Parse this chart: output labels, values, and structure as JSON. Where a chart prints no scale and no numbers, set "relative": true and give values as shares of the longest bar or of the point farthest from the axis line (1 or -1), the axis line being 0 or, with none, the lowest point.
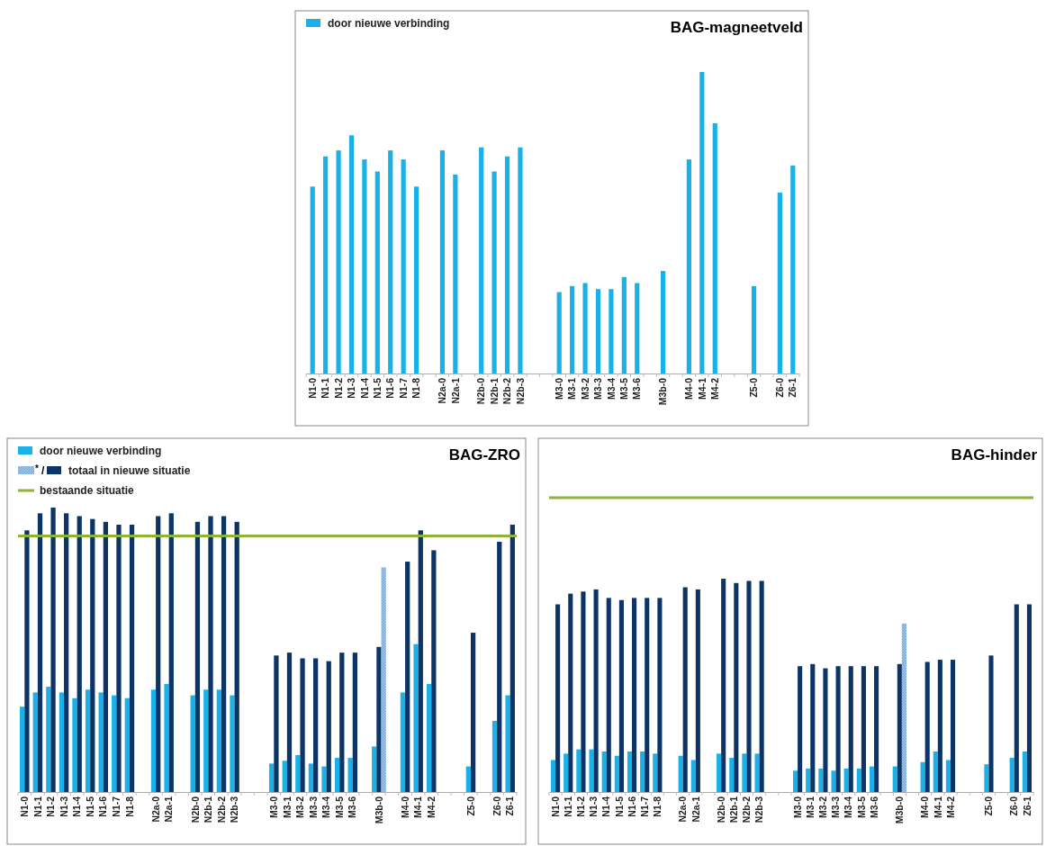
{
  "chart_data": [
    {
      "type": "bar",
      "title": "BAG-magneetveld",
      "relative": true,
      "legend": "top left",
      "categories": [
        "N1-0",
        "N1-1",
        "N1-2",
        "N1-3",
        "N1-4",
        "N1-5",
        "N1-6",
        "N1-7",
        "N1-8",
        null,
        "N2a-0",
        "N2a-1",
        null,
        "N2b-0",
        "N2b-1",
        "N2b-2",
        "N2b-3",
        null,
        null,
        "M3-0",
        "M3-1",
        "M3-2",
        "M3-3",
        "M3-4",
        "M3-5",
        "M3-6",
        null,
        "M3b-0",
        null,
        "M4-0",
        "M4-1",
        "M4-2",
        null,
        null,
        "Z5-0",
        null,
        "Z6-0",
        "Z6-1"
      ],
      "series": [
        {
          "name": "door nieuwe verbinding",
          "color": "#1ab0e8",
          "values": [
            0.62,
            0.72,
            0.74,
            0.79,
            0.71,
            0.67,
            0.74,
            0.71,
            0.62,
            null,
            0.74,
            0.66,
            null,
            0.75,
            0.67,
            0.72,
            0.75,
            null,
            null,
            0.27,
            0.29,
            0.3,
            0.28,
            0.28,
            0.32,
            0.3,
            null,
            0.34,
            null,
            0.71,
            1,
            0.83,
            null,
            null,
            0.29,
            null,
            0.6,
            0.69
          ]
        }
      ]
    },
    {
      "type": "bar",
      "title": "BAG-ZRO",
      "relative": true,
      "legend": "top left",
      "annotations": [
        "*",
        "/"
      ],
      "categories": [
        "N1-0",
        "N1-1",
        "N1-2",
        "N1-3",
        "N1-4",
        "N1-5",
        "N1-6",
        "N1-7",
        "N1-8",
        null,
        "N2a-0",
        "N2a-1",
        null,
        "N2b-0",
        "N2b-1",
        "N2b-2",
        "N2b-3",
        null,
        null,
        "M3-0",
        "M3-1",
        "M3-2",
        "M3-3",
        "M3-4",
        "M3-5",
        "M3-6",
        null,
        "M3b-0",
        null,
        "M4-0",
        "M4-1",
        "M4-2",
        null,
        null,
        "Z5-0",
        null,
        "Z6-0",
        "Z6-1"
      ],
      "series": [
        {
          "name": "door nieuwe verbinding",
          "color": "#1ab0e8",
          "values": [
            0.3,
            0.35,
            0.37,
            0.35,
            0.33,
            0.36,
            0.35,
            0.34,
            0.33,
            null,
            0.36,
            0.38,
            null,
            0.34,
            0.36,
            0.36,
            0.34,
            null,
            null,
            0.1,
            0.11,
            0.13,
            0.1,
            0.09,
            0.12,
            0.12,
            null,
            0.16,
            null,
            0.35,
            0.52,
            0.38,
            null,
            null,
            0.09,
            null,
            0.25,
            0.34
          ]
        },
        {
          "name": "totaal in nieuwe situatie",
          "color": "#0d3466",
          "values": [
            0.92,
            0.98,
            1,
            0.98,
            0.97,
            0.96,
            0.95,
            0.94,
            0.94,
            null,
            0.97,
            0.98,
            null,
            0.95,
            0.97,
            0.97,
            0.95,
            null,
            null,
            0.48,
            0.49,
            0.47,
            0.47,
            0.46,
            0.49,
            0.49,
            null,
            0.51,
            null,
            0.81,
            0.92,
            0.85,
            null,
            null,
            0.56,
            null,
            0.88,
            0.94
          ]
        },
        {
          "color": "#9cc3e4",
          "values": [
            null,
            null,
            null,
            null,
            null,
            null,
            null,
            null,
            null,
            null,
            null,
            null,
            null,
            null,
            null,
            null,
            null,
            null,
            null,
            null,
            null,
            null,
            null,
            null,
            null,
            null,
            null,
            0.79,
            null,
            null,
            null,
            null,
            null,
            null,
            null,
            null,
            null,
            null
          ]
        }
      ],
      "ref_lines": [
        {
          "axis": "y",
          "value": 0.9,
          "label": "bestaande situatie",
          "color": "#8db33a"
        }
      ]
    },
    {
      "type": "bar",
      "title": "BAG-hinder",
      "relative": true,
      "categories": [
        "N1-0",
        "N1-1",
        "N1-2",
        "N1-3",
        "N1-4",
        "N1-5",
        "N1-6",
        "N1-7",
        "N1-8",
        null,
        "N2a-0",
        "N2a-1",
        null,
        "N2b-0",
        "N2b-1",
        "N2b-2",
        "N2b-3",
        null,
        null,
        "M3-0",
        "M3-1",
        "M3-2",
        "M3-3",
        "M3-4",
        "M3-5",
        "M3-6",
        null,
        "M3b-0",
        null,
        "M4-0",
        "M4-1",
        "M4-2",
        null,
        null,
        "Z5-0",
        null,
        "Z6-0",
        "Z6-1"
      ],
      "series": [
        {
          "color": "#1ab0e8",
          "values": [
            0.15,
            0.18,
            0.2,
            0.2,
            0.19,
            0.17,
            0.19,
            0.19,
            0.18,
            null,
            0.17,
            0.15,
            null,
            0.18,
            0.16,
            0.18,
            0.18,
            null,
            null,
            0.1,
            0.11,
            0.11,
            0.1,
            0.11,
            0.11,
            0.12,
            null,
            0.12,
            null,
            0.14,
            0.19,
            0.15,
            null,
            null,
            0.13,
            null,
            0.16,
            0.19
          ]
        },
        {
          "color": "#0d3466",
          "values": [
            0.88,
            0.93,
            0.94,
            0.95,
            0.91,
            0.9,
            0.91,
            0.91,
            0.91,
            null,
            0.96,
            0.95,
            null,
            1,
            0.98,
            0.99,
            0.99,
            null,
            null,
            0.59,
            0.6,
            0.58,
            0.59,
            0.59,
            0.59,
            0.59,
            null,
            0.6,
            null,
            0.61,
            0.62,
            0.62,
            null,
            null,
            0.64,
            null,
            0.88,
            0.88
          ]
        },
        {
          "color": "#9cc3e4",
          "values": [
            null,
            null,
            null,
            null,
            null,
            null,
            null,
            null,
            null,
            null,
            null,
            null,
            null,
            null,
            null,
            null,
            null,
            null,
            null,
            null,
            null,
            null,
            null,
            null,
            null,
            null,
            null,
            0.79,
            null,
            null,
            null,
            null,
            null,
            null,
            null,
            null,
            null,
            null
          ]
        }
      ],
      "ref_lines": [
        {
          "axis": "y",
          "value": 1.38,
          "color": "#8db33a"
        }
      ]
    }
  ]
}
